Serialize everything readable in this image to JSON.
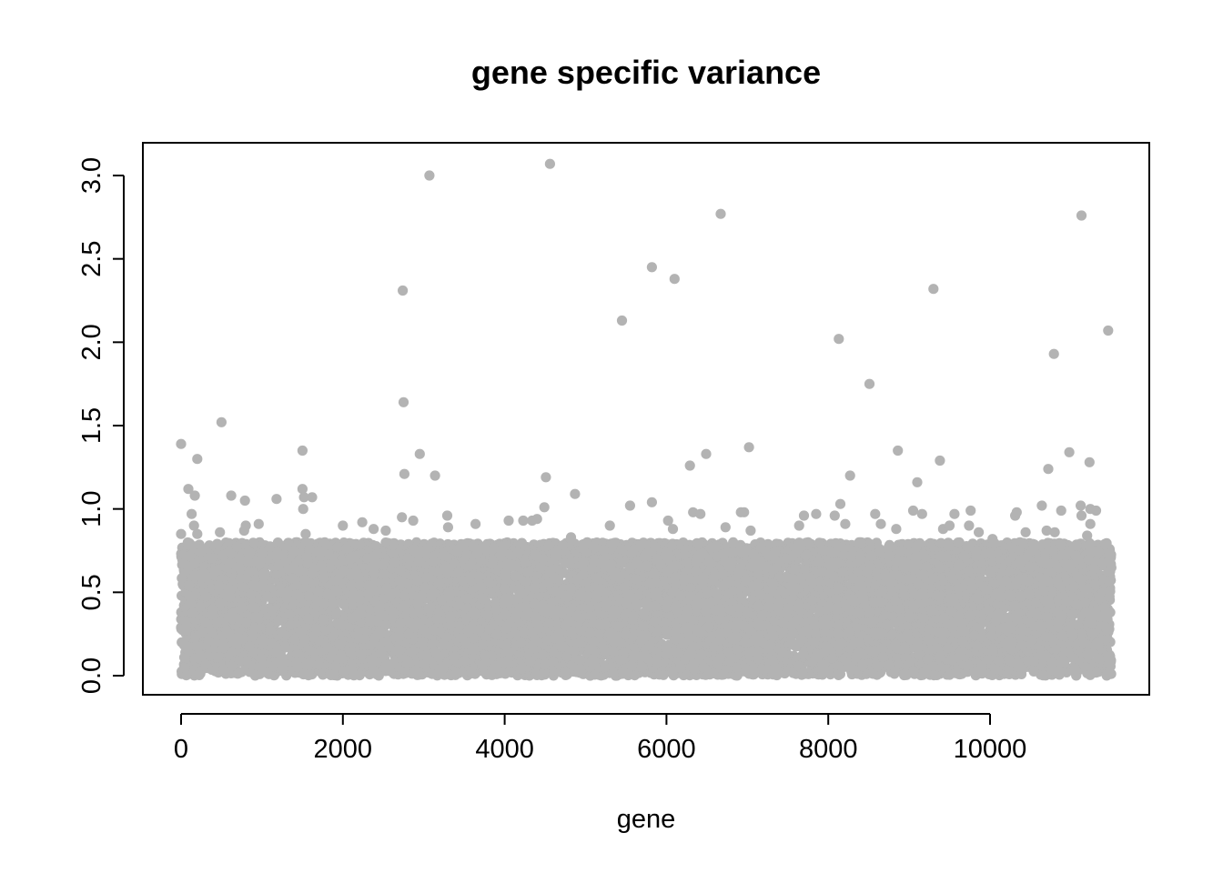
{
  "chart_data": {
    "type": "scatter",
    "title": "gene specific variance",
    "xlabel": "gene",
    "ylabel": "",
    "xlim": [
      0,
      11500
    ],
    "ylim": [
      0,
      3.1
    ],
    "xticks": [
      0,
      2000,
      4000,
      6000,
      8000,
      10000
    ],
    "xtick_labels": [
      "0",
      "2000",
      "4000",
      "6000",
      "8000",
      "10000"
    ],
    "yticks": [
      0.0,
      0.5,
      1.0,
      1.5,
      2.0,
      2.5,
      3.0
    ],
    "ytick_labels": [
      "0.0",
      "0.5",
      "1.0",
      "1.5",
      "2.0",
      "2.5",
      "3.0"
    ],
    "grid": false,
    "point_color": "#b3b3b3",
    "bulk": {
      "n_points": 11500,
      "x_range": [
        0,
        11500
      ],
      "y_range": [
        0.0,
        0.75
      ],
      "note": "dense band of points"
    },
    "series": [
      {
        "points": [
          [
            0,
            1.39
          ],
          [
            0,
            0.85
          ],
          [
            90,
            1.12
          ],
          [
            130,
            0.97
          ],
          [
            170,
            1.08
          ],
          [
            200,
            1.3
          ],
          [
            160,
            0.9
          ],
          [
            200,
            0.85
          ],
          [
            500,
            1.52
          ],
          [
            480,
            0.86
          ],
          [
            620,
            1.08
          ],
          [
            790,
            1.05
          ],
          [
            800,
            0.9
          ],
          [
            780,
            0.87
          ],
          [
            960,
            0.91
          ],
          [
            1180,
            1.06
          ],
          [
            1500,
            1.35
          ],
          [
            1500,
            1.12
          ],
          [
            1520,
            1.07
          ],
          [
            1620,
            1.07
          ],
          [
            1510,
            1.0
          ],
          [
            1540,
            0.85
          ],
          [
            2000,
            0.9
          ],
          [
            2240,
            0.92
          ],
          [
            2380,
            0.88
          ],
          [
            2530,
            0.87
          ],
          [
            2740,
            2.31
          ],
          [
            2750,
            1.64
          ],
          [
            2760,
            1.21
          ],
          [
            2730,
            0.95
          ],
          [
            2870,
            0.93
          ],
          [
            2950,
            1.33
          ],
          [
            3070,
            3.0
          ],
          [
            3140,
            1.2
          ],
          [
            3290,
            0.96
          ],
          [
            3300,
            0.89
          ],
          [
            3640,
            0.91
          ],
          [
            4050,
            0.93
          ],
          [
            4230,
            0.93
          ],
          [
            4340,
            0.93
          ],
          [
            4400,
            0.94
          ],
          [
            4490,
            1.01
          ],
          [
            4510,
            1.19
          ],
          [
            4560,
            3.07
          ],
          [
            4870,
            1.09
          ],
          [
            4820,
            0.83
          ],
          [
            5300,
            0.9
          ],
          [
            5450,
            2.13
          ],
          [
            5550,
            1.02
          ],
          [
            5820,
            2.45
          ],
          [
            5820,
            1.04
          ],
          [
            6020,
            0.93
          ],
          [
            6100,
            2.38
          ],
          [
            6080,
            0.88
          ],
          [
            6290,
            1.26
          ],
          [
            6330,
            0.98
          ],
          [
            6420,
            0.97
          ],
          [
            6490,
            1.33
          ],
          [
            6670,
            2.77
          ],
          [
            6730,
            0.89
          ],
          [
            6920,
            0.98
          ],
          [
            6960,
            0.98
          ],
          [
            7020,
            1.37
          ],
          [
            7040,
            0.87
          ],
          [
            7640,
            0.9
          ],
          [
            7700,
            0.96
          ],
          [
            7850,
            0.97
          ],
          [
            8080,
            0.96
          ],
          [
            8130,
            2.02
          ],
          [
            8150,
            1.03
          ],
          [
            8210,
            0.91
          ],
          [
            8270,
            1.2
          ],
          [
            8510,
            1.75
          ],
          [
            8580,
            0.97
          ],
          [
            8650,
            0.91
          ],
          [
            8840,
            0.88
          ],
          [
            8860,
            1.35
          ],
          [
            9050,
            0.99
          ],
          [
            9100,
            1.16
          ],
          [
            9160,
            0.97
          ],
          [
            9300,
            2.32
          ],
          [
            9380,
            1.29
          ],
          [
            9420,
            0.88
          ],
          [
            9500,
            0.9
          ],
          [
            9560,
            0.97
          ],
          [
            9760,
            0.99
          ],
          [
            9740,
            0.9
          ],
          [
            9860,
            0.86
          ],
          [
            10030,
            0.82
          ],
          [
            10310,
            0.96
          ],
          [
            10330,
            0.98
          ],
          [
            10440,
            0.86
          ],
          [
            10640,
            1.02
          ],
          [
            10720,
            1.24
          ],
          [
            10700,
            0.87
          ],
          [
            10790,
            1.93
          ],
          [
            10800,
            0.86
          ],
          [
            10880,
            0.99
          ],
          [
            10980,
            1.34
          ],
          [
            11130,
            2.76
          ],
          [
            11120,
            1.02
          ],
          [
            11130,
            0.96
          ],
          [
            11200,
            0.84
          ],
          [
            11230,
            1.28
          ],
          [
            11240,
            0.91
          ],
          [
            11240,
            1.0
          ],
          [
            11310,
            0.99
          ],
          [
            11460,
            2.07
          ],
          [
            11420,
            0.79
          ],
          [
            11470,
            0.73
          ]
        ]
      }
    ]
  }
}
